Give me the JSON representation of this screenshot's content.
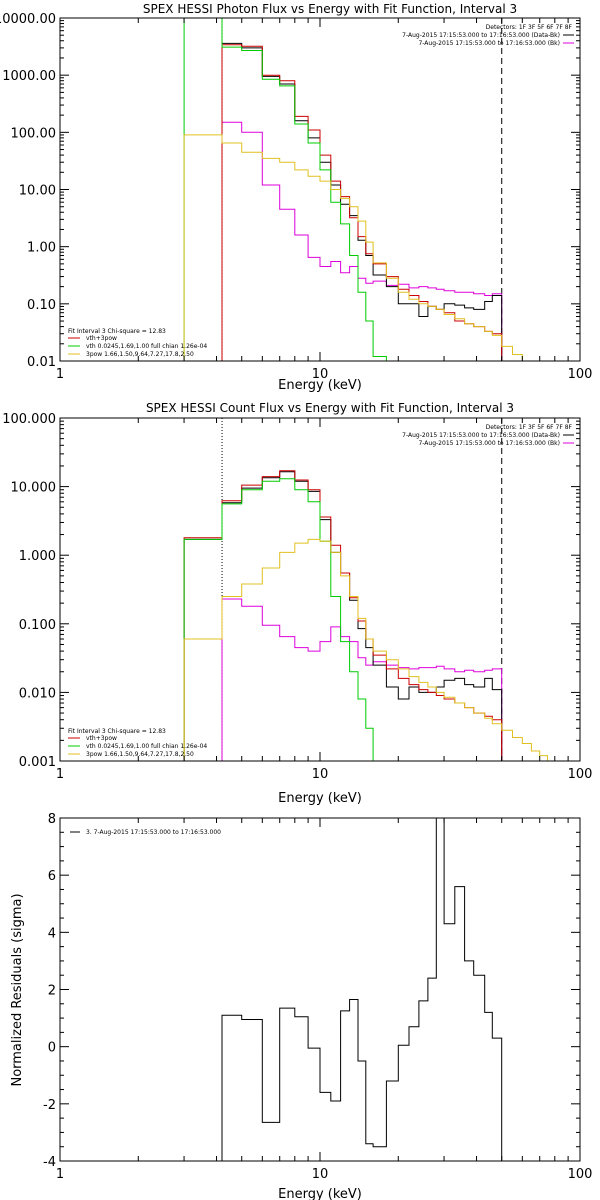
{
  "chart_data": [
    {
      "type": "line",
      "title": "SPEX HESSI Photon Flux vs Energy with Fit Function, Interval 3",
      "xlabel": "Energy (keV)",
      "ylabel": "",
      "x_scale": "log",
      "y_scale": "log",
      "xlim": [
        1,
        100
      ],
      "ylim": [
        0.01,
        10000
      ],
      "x_ticks": [
        "1",
        "10",
        "100"
      ],
      "y_ticks": [
        "0.01",
        "0.10",
        "1.00",
        "10.00",
        "100.00",
        "1000.00",
        "10000.00"
      ],
      "info_lines": [
        "Detectors: 1F 3F 5F 6F 7F 8F",
        "7-Aug-2015 17:15:53.000 to 17:16:53.000 (Data-Bk)",
        "7-Aug-2015 17:15:53.000 to 17:16:53.000 (Bk)"
      ],
      "fit_lines": [
        "Fit Interval 3    Chi-square = 12.83",
        "vth+3pow",
        "vth 0.0245,1.69,1.00  full chian 1.26e-04",
        "3pow 1.66,1.50,9.64,7.27,17.8,2.50"
      ],
      "markers": {
        "fit_low": 4.2,
        "fit_high": 50
      },
      "series": [
        {
          "name": "Data-Bk",
          "color": "#000000",
          "edges": [
            3,
            4.2,
            5,
            6,
            7,
            8,
            9,
            10,
            11,
            12,
            13,
            14,
            15,
            16,
            18,
            20,
            22,
            24,
            26,
            28,
            30,
            33,
            36,
            39,
            43,
            46,
            50
          ],
          "values": [
            null,
            3600,
            3000,
            950,
            700,
            160,
            80,
            30,
            12,
            5.5,
            3.5,
            1.3,
            0.7,
            0.32,
            0.2,
            0.1,
            0.1,
            0.06,
            0.09,
            0.08,
            0.1,
            0.095,
            0.085,
            0.08,
            0.11,
            0.14
          ]
        },
        {
          "name": "Bk",
          "color": "#dd00dd",
          "edges": [
            3,
            4.2,
            5,
            6,
            7,
            8,
            9,
            10,
            11,
            12,
            13,
            14,
            15,
            16,
            18,
            20,
            22,
            24,
            26,
            28,
            30,
            33,
            36,
            39,
            43,
            46,
            50
          ],
          "values": [
            null,
            150,
            100,
            12,
            4.5,
            1.6,
            0.65,
            0.45,
            0.55,
            0.35,
            0.45,
            0.28,
            0.23,
            0.25,
            0.21,
            0.22,
            0.19,
            0.2,
            0.19,
            0.18,
            0.17,
            0.16,
            0.16,
            0.15,
            0.14,
            0.15
          ]
        },
        {
          "name": "vth+3pow",
          "color": "#cc0000",
          "edges": [
            3,
            4.2,
            5,
            6,
            7,
            8,
            9,
            10,
            11,
            12,
            13,
            14,
            15,
            16,
            18,
            20,
            22,
            24,
            26,
            28,
            30,
            33,
            36,
            39,
            43,
            46,
            50
          ],
          "values": [
            null,
            3400,
            3200,
            1000,
            800,
            190,
            110,
            40,
            14,
            7.5,
            3.2,
            1.5,
            0.75,
            0.5,
            0.3,
            0.18,
            0.14,
            0.11,
            0.09,
            0.08,
            0.07,
            0.05,
            0.045,
            0.04,
            0.033,
            0.03
          ]
        },
        {
          "name": "vth",
          "color": "#00cc00",
          "edges": [
            3,
            4.2,
            5,
            6,
            7,
            8,
            9,
            10,
            11,
            12,
            13,
            14,
            15,
            16,
            18
          ],
          "values": [
            100000,
            3100,
            2700,
            850,
            650,
            140,
            65,
            22,
            6,
            2.5,
            0.7,
            0.16,
            0.05,
            0.012
          ]
        },
        {
          "name": "3pow",
          "color": "#e0c020",
          "edges": [
            3,
            4.2,
            5,
            6,
            7,
            8,
            9,
            10,
            11,
            12,
            13,
            14,
            15,
            16,
            18,
            20,
            22,
            24,
            26,
            28,
            30,
            33,
            36,
            39,
            43,
            46,
            50,
            55,
            60,
            65
          ],
          "values": [
            90,
            65,
            45,
            35,
            30,
            22,
            17,
            14,
            10,
            7,
            5,
            2.8,
            1.2,
            0.52,
            0.28,
            0.16,
            0.12,
            0.1,
            0.09,
            0.08,
            0.065,
            0.055,
            0.045,
            0.04,
            0.033,
            0.028,
            0.018,
            0.013,
            0.01
          ]
        }
      ]
    },
    {
      "type": "line",
      "title": "SPEX HESSI Count Flux vs Energy with Fit Function, Interval 3",
      "xlabel": "Energy (keV)",
      "ylabel": "",
      "x_scale": "log",
      "y_scale": "log",
      "xlim": [
        1,
        100
      ],
      "ylim": [
        0.001,
        100
      ],
      "x_ticks": [
        "1",
        "10",
        "100"
      ],
      "y_ticks": [
        "0.001",
        "0.010",
        "0.100",
        "1.000",
        "10.000",
        "100.000"
      ],
      "info_lines": [
        "Detectors: 1F 3F 5F 6F 7F 8F",
        "7-Aug-2015 17:15:53.000 to 17:16:53.000 (Data-Bk)",
        "7-Aug-2015 17:15:53.000 to 17:16:53.000 (Bk)"
      ],
      "fit_lines": [
        "Fit Interval 3    Chi-square = 12.83",
        "vth+3pow",
        "vth 0.0245,1.69,1.00  full chian 1.26e-04",
        "3pow 1.66,1.50,9.64,7.27,17.8,2.50"
      ],
      "markers": {
        "fit_low": 4.2,
        "fit_high": 50
      },
      "series": [
        {
          "name": "Data-Bk",
          "color": "#000000",
          "edges": [
            3,
            4.2,
            5,
            6,
            7,
            8,
            9,
            10,
            11,
            12,
            13,
            14,
            15,
            16,
            18,
            20,
            22,
            24,
            26,
            28,
            30,
            33,
            36,
            39,
            43,
            46,
            50
          ],
          "values": [
            1.7,
            5.8,
            9.5,
            13.5,
            16.5,
            12,
            8.5,
            3.3,
            1.1,
            0.55,
            0.22,
            0.085,
            0.045,
            0.025,
            0.012,
            0.008,
            0.012,
            0.01,
            0.01,
            0.012,
            0.015,
            0.016,
            0.013,
            0.012,
            0.016,
            0.011
          ]
        },
        {
          "name": "Bk",
          "color": "#dd00dd",
          "edges": [
            3,
            4.2,
            5,
            6,
            7,
            8,
            9,
            10,
            11,
            12,
            13,
            14,
            15,
            16,
            18,
            20,
            22,
            24,
            26,
            28,
            30,
            33,
            36,
            39,
            43,
            46,
            50
          ],
          "values": [
            null,
            0.23,
            0.18,
            0.095,
            0.065,
            0.045,
            0.04,
            0.055,
            0.09,
            0.065,
            0.055,
            0.032,
            0.025,
            0.028,
            0.025,
            0.023,
            0.022,
            0.023,
            0.023,
            0.024,
            0.022,
            0.02,
            0.021,
            0.02,
            0.021,
            0.022
          ]
        },
        {
          "name": "vth+3pow",
          "color": "#cc0000",
          "edges": [
            3,
            4.2,
            5,
            6,
            7,
            8,
            9,
            10,
            11,
            12,
            13,
            14,
            15,
            16,
            18,
            20,
            22,
            24,
            26,
            28,
            30,
            33,
            36,
            39,
            43,
            46,
            50
          ],
          "values": [
            1.8,
            6.2,
            10.5,
            14,
            17,
            12.5,
            9,
            3.6,
            1.4,
            0.55,
            0.24,
            0.11,
            0.06,
            0.035,
            0.022,
            0.016,
            0.013,
            0.011,
            0.01,
            0.009,
            0.008,
            0.007,
            0.006,
            0.005,
            0.0045,
            0.004
          ]
        },
        {
          "name": "vth",
          "color": "#00cc00",
          "edges": [
            3,
            4.2,
            5,
            6,
            7,
            8,
            9,
            10,
            11,
            12,
            13,
            14,
            15,
            16,
            18
          ],
          "values": [
            1.7,
            5.6,
            9,
            12,
            13,
            9,
            6,
            1.6,
            0.25,
            0.055,
            0.02,
            0.008,
            0.003,
            0.001
          ]
        },
        {
          "name": "3pow",
          "color": "#e0c020",
          "edges": [
            3,
            4.2,
            5,
            6,
            7,
            8,
            9,
            10,
            11,
            12,
            13,
            14,
            15,
            16,
            18,
            20,
            22,
            24,
            26,
            28,
            30,
            33,
            36,
            39,
            43,
            46,
            50,
            55,
            60,
            65,
            70,
            75
          ],
          "values": [
            0.06,
            0.25,
            0.38,
            0.65,
            1.1,
            1.5,
            1.7,
            1.6,
            1.1,
            0.5,
            0.25,
            0.12,
            0.06,
            0.04,
            0.03,
            0.022,
            0.017,
            0.014,
            0.012,
            0.01,
            0.0085,
            0.007,
            0.006,
            0.005,
            0.0042,
            0.0035,
            0.0028,
            0.0022,
            0.0018,
            0.0014,
            0.0012
          ]
        }
      ]
    },
    {
      "type": "line",
      "title": "",
      "xlabel": "Energy (keV)",
      "ylabel": "Normalized Residuals (sigma)",
      "x_scale": "log",
      "y_scale": "linear",
      "xlim": [
        1,
        100
      ],
      "ylim": [
        -4,
        8
      ],
      "x_ticks": [
        "1",
        "10",
        "100"
      ],
      "y_ticks": [
        "-4",
        "-2",
        "0",
        "2",
        "4",
        "6",
        "8"
      ],
      "legend_line": "3.  7-Aug-2015 17:15:53.000 to 17:16:53.000",
      "series": [
        {
          "name": "residuals",
          "color": "#000000",
          "edges": [
            4.2,
            5,
            6,
            7,
            8,
            9,
            10,
            11,
            12,
            13,
            14,
            15,
            16,
            18,
            20,
            22,
            24,
            26,
            28,
            30,
            33,
            36,
            39,
            43,
            46,
            50
          ],
          "values": [
            1.1,
            0.95,
            -2.65,
            1.35,
            1.05,
            -0.05,
            -1.6,
            -1.9,
            1.25,
            1.65,
            -0.5,
            -3.4,
            -3.5,
            -1.2,
            0.05,
            0.7,
            1.6,
            2.4,
            8.0,
            4.3,
            5.6,
            3.0,
            2.5,
            1.2,
            0.3
          ]
        }
      ]
    }
  ]
}
